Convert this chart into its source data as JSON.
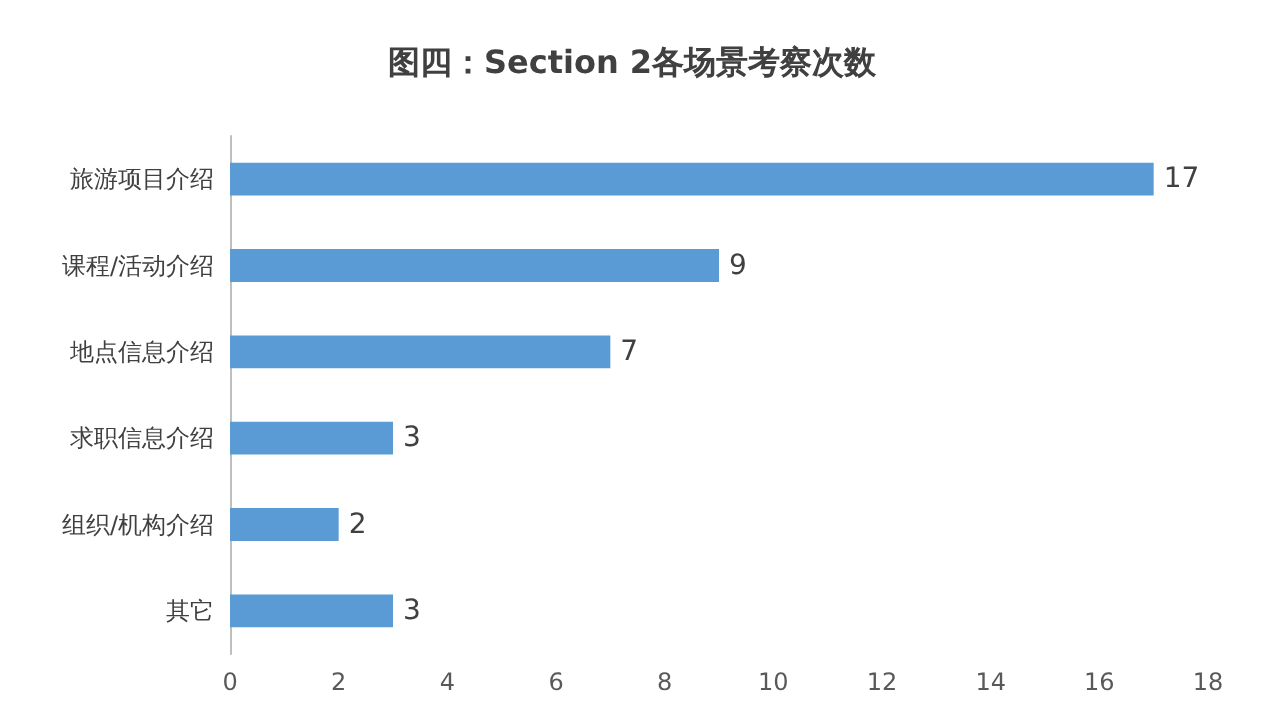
{
  "chart_data": {
    "type": "bar",
    "title": "图四：Section 2各场景考察次数",
    "orientation": "horizontal",
    "categories": [
      "旅游项目介绍",
      "课程/活动介绍",
      "地点信息介绍",
      "求职信息介绍",
      "组织/机构介绍",
      "其它"
    ],
    "values": [
      17,
      9,
      7,
      3,
      2,
      3
    ],
    "color": "#5b9bd5",
    "xlim": [
      0,
      18
    ],
    "xticks": [
      0,
      2,
      4,
      6,
      8,
      10,
      12,
      14,
      16,
      18
    ],
    "grid": false,
    "data_labels": true
  }
}
